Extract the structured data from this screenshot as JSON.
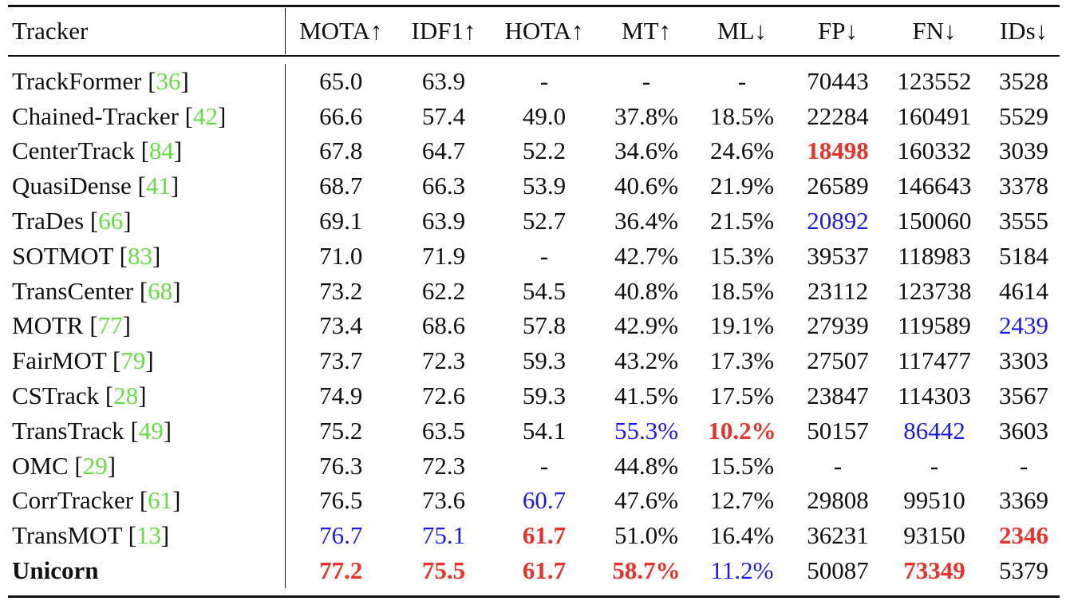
{
  "table": {
    "columns": [
      "Tracker",
      "MOTA↑",
      "IDF1↑",
      "HOTA↑",
      "MT↑",
      "ML↓",
      "FP↓",
      "FN↓",
      "IDs↓"
    ],
    "styles": {
      "best": {
        "color": "#e8322a",
        "bold": true
      },
      "second": {
        "color": "#1a1aee",
        "bold": false
      }
    },
    "citation_color": "#66dd44",
    "rows": [
      {
        "tracker": "TrackFormer",
        "citation": "[36]",
        "cells": [
          "65.0",
          "63.9",
          "-",
          "-",
          "-",
          "70443",
          "123552",
          "3528"
        ]
      },
      {
        "tracker": "Chained-Tracker",
        "citation": "[42]",
        "cells": [
          "66.6",
          "57.4",
          "49.0",
          "37.8%",
          "18.5%",
          "22284",
          "160491",
          "5529"
        ]
      },
      {
        "tracker": "CenterTrack",
        "citation": "[84]",
        "cells": [
          "67.8",
          "64.7",
          "52.2",
          "34.6%",
          "24.6%",
          {
            "text": "18498",
            "emphasis": "best"
          },
          "160332",
          "3039"
        ]
      },
      {
        "tracker": "QuasiDense",
        "citation": "[41]",
        "cells": [
          "68.7",
          "66.3",
          "53.9",
          "40.6%",
          "21.9%",
          "26589",
          "146643",
          "3378"
        ]
      },
      {
        "tracker": "TraDes",
        "citation": "[66]",
        "cells": [
          "69.1",
          "63.9",
          "52.7",
          "36.4%",
          "21.5%",
          {
            "text": "20892",
            "emphasis": "second"
          },
          "150060",
          "3555"
        ]
      },
      {
        "tracker": "SOTMOT",
        "citation": "[83]",
        "cells": [
          "71.0",
          "71.9",
          "-",
          "42.7%",
          "15.3%",
          "39537",
          "118983",
          "5184"
        ]
      },
      {
        "tracker": "TransCenter",
        "citation": "[68]",
        "cells": [
          "73.2",
          "62.2",
          "54.5",
          "40.8%",
          "18.5%",
          "23112",
          "123738",
          "4614"
        ]
      },
      {
        "tracker": "MOTR",
        "citation": "[77]",
        "cells": [
          "73.4",
          "68.6",
          "57.8",
          "42.9%",
          "19.1%",
          "27939",
          "119589",
          {
            "text": "2439",
            "emphasis": "second"
          }
        ]
      },
      {
        "tracker": "FairMOT",
        "citation": "[79]",
        "cells": [
          "73.7",
          "72.3",
          "59.3",
          "43.2%",
          "17.3%",
          "27507",
          "117477",
          "3303"
        ]
      },
      {
        "tracker": "CSTrack",
        "citation": "[28]",
        "cells": [
          "74.9",
          "72.6",
          "59.3",
          "41.5%",
          "17.5%",
          "23847",
          "114303",
          "3567"
        ]
      },
      {
        "tracker": "TransTrack",
        "citation": "[49]",
        "cells": [
          "75.2",
          "63.5",
          "54.1",
          {
            "text": "55.3%",
            "emphasis": "second"
          },
          {
            "text": "10.2%",
            "emphasis": "best"
          },
          "50157",
          {
            "text": "86442",
            "emphasis": "second"
          },
          "3603"
        ]
      },
      {
        "tracker": "OMC",
        "citation": "[29]",
        "cells": [
          "76.3",
          "72.3",
          "-",
          "44.8%",
          "15.5%",
          "-",
          "-",
          "-"
        ]
      },
      {
        "tracker": "CorrTracker",
        "citation": "[61]",
        "cells": [
          "76.5",
          "73.6",
          {
            "text": "60.7",
            "emphasis": "second"
          },
          "47.6%",
          "12.7%",
          "29808",
          "99510",
          "3369"
        ]
      },
      {
        "tracker": "TransMOT",
        "citation": "[13]",
        "cells": [
          {
            "text": "76.7",
            "emphasis": "second"
          },
          {
            "text": "75.1",
            "emphasis": "second"
          },
          {
            "text": "61.7",
            "emphasis": "best"
          },
          "51.0%",
          "16.4%",
          "36231",
          "93150",
          {
            "text": "2346",
            "emphasis": "best"
          }
        ]
      },
      {
        "tracker": "Unicorn",
        "bold": true,
        "cells": [
          {
            "text": "77.2",
            "emphasis": "best"
          },
          {
            "text": "75.5",
            "emphasis": "best"
          },
          {
            "text": "61.7",
            "emphasis": "best"
          },
          {
            "text": "58.7%",
            "emphasis": "best"
          },
          {
            "text": "11.2%",
            "emphasis": "second"
          },
          "50087",
          {
            "text": "73349",
            "emphasis": "best"
          },
          "5379"
        ]
      }
    ]
  }
}
